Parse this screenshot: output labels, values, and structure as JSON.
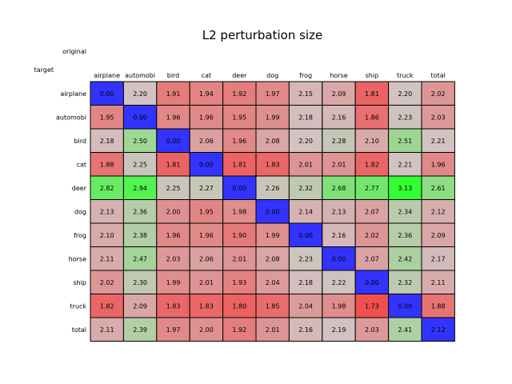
{
  "chart_data": {
    "type": "heatmap",
    "title": "L2 perturbation size",
    "row_axis_label": "target",
    "col_axis_label": "original",
    "columns": [
      "airplane",
      "automobi",
      "bird",
      "cat",
      "deer",
      "dog",
      "frog",
      "horse",
      "ship",
      "truck",
      "total"
    ],
    "rows": [
      "airplane",
      "automobi",
      "bird",
      "cat",
      "deer",
      "dog",
      "frog",
      "horse",
      "ship",
      "truck",
      "total"
    ],
    "values": [
      [
        0.0,
        2.2,
        1.91,
        1.94,
        1.92,
        1.97,
        2.15,
        2.09,
        1.81,
        2.2,
        2.02
      ],
      [
        1.95,
        0.0,
        1.96,
        1.96,
        1.95,
        1.99,
        2.18,
        2.16,
        1.86,
        2.23,
        2.03
      ],
      [
        2.18,
        2.5,
        0.0,
        2.06,
        1.96,
        2.08,
        2.2,
        2.28,
        2.1,
        2.51,
        2.21
      ],
      [
        1.88,
        2.25,
        1.81,
        0.0,
        1.81,
        1.83,
        2.01,
        2.01,
        1.82,
        2.21,
        1.96
      ],
      [
        2.82,
        2.94,
        2.25,
        2.27,
        0.0,
        2.26,
        2.32,
        2.68,
        2.77,
        3.13,
        2.61
      ],
      [
        2.13,
        2.36,
        2.0,
        1.95,
        1.98,
        0.0,
        2.14,
        2.13,
        2.07,
        2.34,
        2.12
      ],
      [
        2.1,
        2.38,
        1.96,
        1.96,
        1.9,
        1.99,
        0.0,
        2.16,
        2.02,
        2.36,
        2.09
      ],
      [
        2.11,
        2.47,
        2.03,
        2.06,
        2.01,
        2.08,
        2.23,
        0.0,
        2.07,
        2.42,
        2.17
      ],
      [
        2.02,
        2.3,
        1.99,
        2.01,
        1.93,
        2.04,
        2.18,
        2.22,
        0.0,
        2.32,
        2.11
      ],
      [
        1.82,
        2.09,
        1.83,
        1.83,
        1.8,
        1.85,
        2.04,
        1.98,
        1.73,
        0.0,
        1.88
      ],
      [
        2.11,
        2.39,
        1.97,
        2.0,
        1.92,
        2.01,
        2.16,
        2.19,
        2.03,
        2.41,
        2.12
      ]
    ],
    "colors": {
      "diagonal": "#3333ff",
      "low": "#f05050",
      "mid": "#d2c2c2",
      "high": "#33ff33"
    },
    "grid": true,
    "legend": "none"
  }
}
